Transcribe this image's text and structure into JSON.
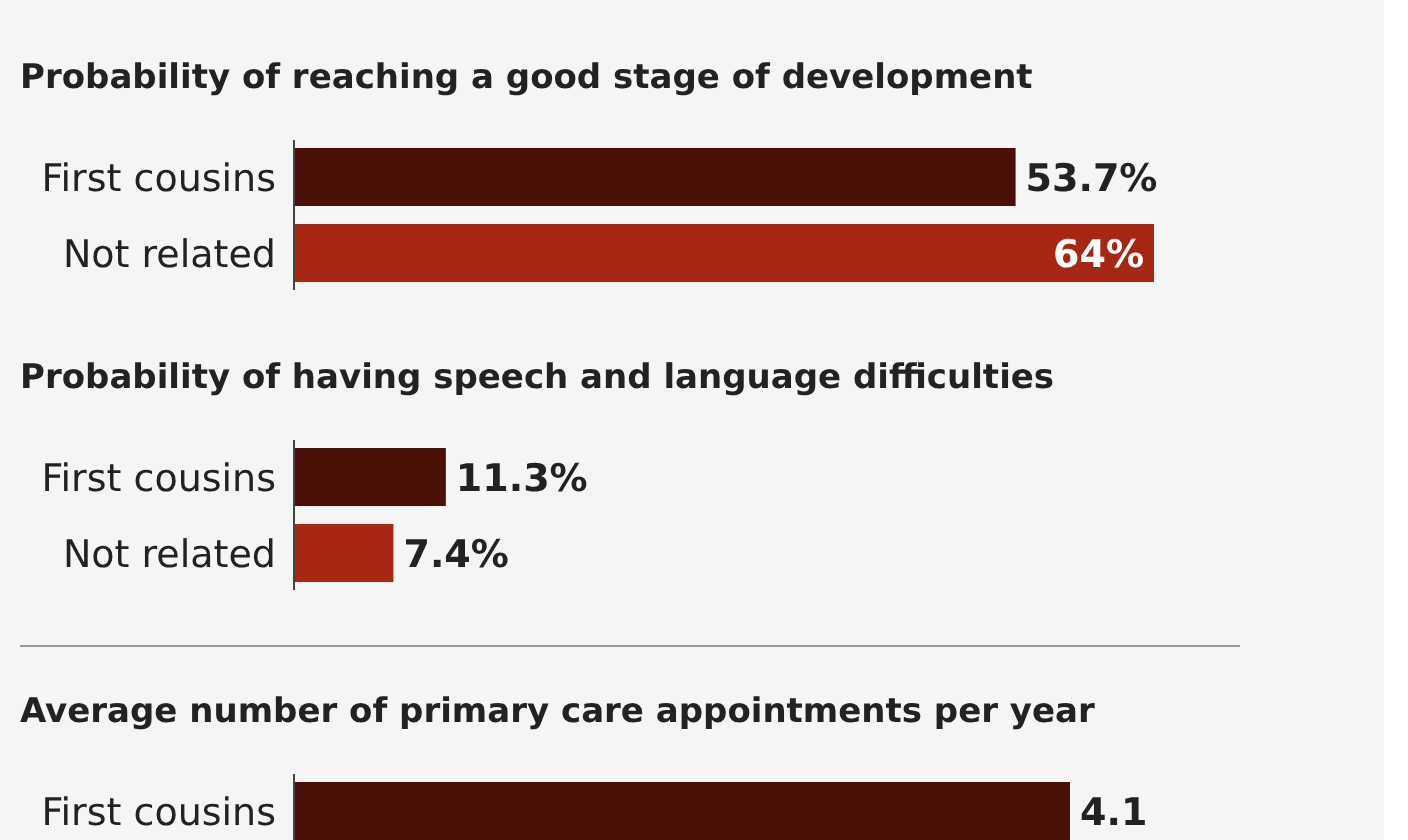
{
  "chart_data": [
    {
      "type": "bar",
      "orientation": "horizontal",
      "title": "Probability of reaching a good stage of development",
      "categories": [
        "First cousins",
        "Not related"
      ],
      "values": [
        53.7,
        64
      ],
      "colors": [
        "#4a1008",
        "#a62812"
      ],
      "value_labels": [
        "53.7%",
        "64%"
      ]
    },
    {
      "type": "bar",
      "orientation": "horizontal",
      "title": "Probability of having speech and language difficulties",
      "categories": [
        "First cousins",
        "Not related"
      ],
      "values": [
        11.3,
        7.4
      ],
      "colors": [
        "#4a1008",
        "#a62812"
      ],
      "value_labels": [
        "11.3%",
        "7.4%"
      ]
    },
    {
      "type": "bar",
      "orientation": "horizontal",
      "title": "Average number of primary care appointments per year",
      "categories": [
        "First cousins"
      ],
      "values": [
        4.1
      ],
      "colors": [
        "#4a1008"
      ],
      "value_labels": [
        "4.1"
      ]
    }
  ]
}
